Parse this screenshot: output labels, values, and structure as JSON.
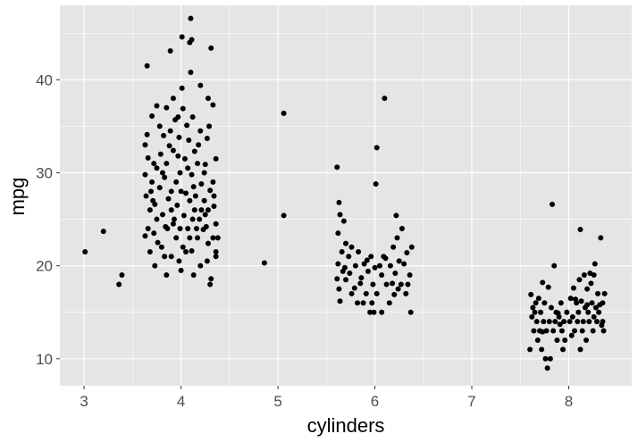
{
  "chart_data": {
    "type": "scatter",
    "title": "",
    "xlabel": "cylinders",
    "ylabel": "mpg",
    "xlim": [
      2.75,
      8.65
    ],
    "ylim": [
      7.1,
      48.0
    ],
    "xticks": [
      3,
      4,
      5,
      6,
      7,
      8
    ],
    "yticks": [
      10,
      20,
      30,
      40
    ],
    "x_tick_labels": [
      "3",
      "4",
      "5",
      "6",
      "7",
      "8"
    ],
    "y_tick_labels": [
      "10",
      "20",
      "30",
      "40"
    ],
    "grid": true,
    "legend": "none",
    "colors": {
      "panel": "#e5e5e5",
      "grid": "#ffffff",
      "point": "#000000",
      "tick_text": "#4d4d4d"
    },
    "jitter_width": 0.4,
    "series": [
      {
        "values": [
          {
            "x": 3.01,
            "y": 21.5
          },
          {
            "x": 3.2,
            "y": 23.7
          },
          {
            "x": 3.36,
            "y": 18.0
          },
          {
            "x": 3.39,
            "y": 19.0
          },
          {
            "x": 4.86,
            "y": 20.3
          },
          {
            "x": 5.06,
            "y": 36.4
          },
          {
            "x": 5.06,
            "y": 25.4
          },
          {
            "x": 4.1,
            "y": 46.6
          },
          {
            "x": 4.01,
            "y": 44.6
          },
          {
            "x": 4.11,
            "y": 44.3
          },
          {
            "x": 4.09,
            "y": 44.0
          },
          {
            "x": 3.89,
            "y": 43.1
          },
          {
            "x": 4.31,
            "y": 43.4
          },
          {
            "x": 3.65,
            "y": 41.5
          },
          {
            "x": 4.1,
            "y": 40.8
          },
          {
            "x": 4.01,
            "y": 39.1
          },
          {
            "x": 3.92,
            "y": 38.0
          },
          {
            "x": 4.2,
            "y": 39.4
          },
          {
            "x": 4.28,
            "y": 38.0
          },
          {
            "x": 3.75,
            "y": 37.2
          },
          {
            "x": 3.85,
            "y": 37.0
          },
          {
            "x": 3.7,
            "y": 36.1
          },
          {
            "x": 3.97,
            "y": 36.0
          },
          {
            "x": 4.12,
            "y": 36.0
          },
          {
            "x": 4.33,
            "y": 37.3
          },
          {
            "x": 3.78,
            "y": 35.0
          },
          {
            "x": 4.06,
            "y": 35.1
          },
          {
            "x": 4.2,
            "y": 34.5
          },
          {
            "x": 3.65,
            "y": 34.1
          },
          {
            "x": 3.82,
            "y": 34.0
          },
          {
            "x": 3.98,
            "y": 33.8
          },
          {
            "x": 4.08,
            "y": 33.5
          },
          {
            "x": 3.63,
            "y": 33.0
          },
          {
            "x": 3.88,
            "y": 32.9
          },
          {
            "x": 4.27,
            "y": 33.7
          },
          {
            "x": 3.92,
            "y": 32.4
          },
          {
            "x": 4.14,
            "y": 32.3
          },
          {
            "x": 3.66,
            "y": 31.6
          },
          {
            "x": 4.04,
            "y": 31.5
          },
          {
            "x": 3.72,
            "y": 31.0
          },
          {
            "x": 3.85,
            "y": 31.0
          },
          {
            "x": 4.17,
            "y": 31.0
          },
          {
            "x": 4.36,
            "y": 31.5
          },
          {
            "x": 3.75,
            "y": 30.5
          },
          {
            "x": 3.99,
            "y": 30.0
          },
          {
            "x": 4.25,
            "y": 30.9
          },
          {
            "x": 3.63,
            "y": 29.8
          },
          {
            "x": 3.83,
            "y": 29.5
          },
          {
            "x": 4.11,
            "y": 29.8
          },
          {
            "x": 4.33,
            "y": 29.0
          },
          {
            "x": 3.7,
            "y": 29.0
          },
          {
            "x": 3.95,
            "y": 29.0
          },
          {
            "x": 4.21,
            "y": 28.8
          },
          {
            "x": 3.78,
            "y": 28.4
          },
          {
            "x": 3.9,
            "y": 28.0
          },
          {
            "x": 4.0,
            "y": 28.0
          },
          {
            "x": 4.3,
            "y": 28.1
          },
          {
            "x": 3.64,
            "y": 27.5
          },
          {
            "x": 3.87,
            "y": 27.2
          },
          {
            "x": 4.09,
            "y": 27.0
          },
          {
            "x": 4.24,
            "y": 27.0
          },
          {
            "x": 3.73,
            "y": 26.6
          },
          {
            "x": 3.96,
            "y": 26.5
          },
          {
            "x": 4.14,
            "y": 26.0
          },
          {
            "x": 4.21,
            "y": 26.0
          },
          {
            "x": 4.28,
            "y": 26.0
          },
          {
            "x": 4.34,
            "y": 26.4
          },
          {
            "x": 3.68,
            "y": 26.0
          },
          {
            "x": 3.81,
            "y": 25.5
          },
          {
            "x": 4.03,
            "y": 25.4
          },
          {
            "x": 4.12,
            "y": 25.0
          },
          {
            "x": 4.19,
            "y": 25.0
          },
          {
            "x": 3.75,
            "y": 25.0
          },
          {
            "x": 3.92,
            "y": 24.5
          },
          {
            "x": 4.26,
            "y": 24.2
          },
          {
            "x": 4.36,
            "y": 24.5
          },
          {
            "x": 3.66,
            "y": 24.0
          },
          {
            "x": 3.86,
            "y": 24.0
          },
          {
            "x": 3.99,
            "y": 24.0
          },
          {
            "x": 4.07,
            "y": 24.0
          },
          {
            "x": 4.23,
            "y": 23.9
          },
          {
            "x": 3.72,
            "y": 23.5
          },
          {
            "x": 3.95,
            "y": 23.0
          },
          {
            "x": 4.17,
            "y": 23.0
          },
          {
            "x": 4.33,
            "y": 23.0
          },
          {
            "x": 4.38,
            "y": 23.0
          },
          {
            "x": 3.63,
            "y": 23.2
          },
          {
            "x": 3.8,
            "y": 22.0
          },
          {
            "x": 4.02,
            "y": 22.0
          },
          {
            "x": 4.28,
            "y": 22.4
          },
          {
            "x": 3.68,
            "y": 21.5
          },
          {
            "x": 3.9,
            "y": 21.0
          },
          {
            "x": 4.11,
            "y": 21.6
          },
          {
            "x": 4.36,
            "y": 21.5
          },
          {
            "x": 4.36,
            "y": 21.0
          },
          {
            "x": 3.98,
            "y": 20.5
          },
          {
            "x": 4.2,
            "y": 20.0
          },
          {
            "x": 3.73,
            "y": 20.0
          },
          {
            "x": 3.85,
            "y": 19.0
          },
          {
            "x": 4.13,
            "y": 19.0
          },
          {
            "x": 4.31,
            "y": 18.6
          },
          {
            "x": 4.3,
            "y": 18.0
          },
          {
            "x": 4.05,
            "y": 27.8
          },
          {
            "x": 3.94,
            "y": 35.7
          },
          {
            "x": 4.18,
            "y": 33.0
          },
          {
            "x": 3.79,
            "y": 32.0
          },
          {
            "x": 4.07,
            "y": 30.5
          },
          {
            "x": 3.69,
            "y": 28.0
          },
          {
            "x": 4.15,
            "y": 27.5
          },
          {
            "x": 3.9,
            "y": 26.0
          },
          {
            "x": 4.25,
            "y": 25.5
          },
          {
            "x": 3.84,
            "y": 24.2
          },
          {
            "x": 4.16,
            "y": 24.0
          },
          {
            "x": 3.76,
            "y": 22.5
          },
          {
            "x": 4.05,
            "y": 21.5
          },
          {
            "x": 4.24,
            "y": 30.0
          },
          {
            "x": 3.97,
            "y": 31.8
          },
          {
            "x": 3.89,
            "y": 34.5
          },
          {
            "x": 4.02,
            "y": 36.9
          },
          {
            "x": 4.29,
            "y": 35.0
          },
          {
            "x": 3.81,
            "y": 30.0
          },
          {
            "x": 4.13,
            "y": 28.5
          },
          {
            "x": 3.71,
            "y": 27.0
          },
          {
            "x": 4.34,
            "y": 27.5
          },
          {
            "x": 3.93,
            "y": 25.0
          },
          {
            "x": 4.09,
            "y": 23.0
          },
          {
            "x": 3.83,
            "y": 21.0
          },
          {
            "x": 4.27,
            "y": 20.5
          },
          {
            "x": 4.0,
            "y": 19.5
          },
          {
            "x": 6.1,
            "y": 38.0
          },
          {
            "x": 6.02,
            "y": 32.7
          },
          {
            "x": 5.61,
            "y": 30.6
          },
          {
            "x": 6.01,
            "y": 28.8
          },
          {
            "x": 5.63,
            "y": 26.8
          },
          {
            "x": 5.64,
            "y": 25.5
          },
          {
            "x": 6.22,
            "y": 25.4
          },
          {
            "x": 5.68,
            "y": 24.8
          },
          {
            "x": 6.28,
            "y": 24.0
          },
          {
            "x": 5.62,
            "y": 23.5
          },
          {
            "x": 6.23,
            "y": 23.0
          },
          {
            "x": 5.7,
            "y": 22.4
          },
          {
            "x": 5.76,
            "y": 22.0
          },
          {
            "x": 6.19,
            "y": 22.0
          },
          {
            "x": 6.38,
            "y": 22.0
          },
          {
            "x": 5.66,
            "y": 21.5
          },
          {
            "x": 5.83,
            "y": 21.5
          },
          {
            "x": 6.33,
            "y": 21.4
          },
          {
            "x": 5.73,
            "y": 21.0
          },
          {
            "x": 5.96,
            "y": 21.0
          },
          {
            "x": 6.11,
            "y": 20.8
          },
          {
            "x": 6.25,
            "y": 20.5
          },
          {
            "x": 5.62,
            "y": 20.2
          },
          {
            "x": 5.8,
            "y": 20.0
          },
          {
            "x": 5.89,
            "y": 20.2
          },
          {
            "x": 6.05,
            "y": 20.0
          },
          {
            "x": 6.16,
            "y": 20.0
          },
          {
            "x": 6.3,
            "y": 20.2
          },
          {
            "x": 5.67,
            "y": 19.4
          },
          {
            "x": 5.74,
            "y": 19.2
          },
          {
            "x": 5.93,
            "y": 19.4
          },
          {
            "x": 6.07,
            "y": 19.0
          },
          {
            "x": 6.21,
            "y": 19.2
          },
          {
            "x": 6.36,
            "y": 19.0
          },
          {
            "x": 5.61,
            "y": 18.6
          },
          {
            "x": 5.7,
            "y": 18.5
          },
          {
            "x": 5.85,
            "y": 18.1
          },
          {
            "x": 5.98,
            "y": 18.0
          },
          {
            "x": 6.12,
            "y": 18.0
          },
          {
            "x": 6.18,
            "y": 18.1
          },
          {
            "x": 6.27,
            "y": 18.0
          },
          {
            "x": 6.34,
            "y": 18.0
          },
          {
            "x": 5.63,
            "y": 17.5
          },
          {
            "x": 5.79,
            "y": 17.6
          },
          {
            "x": 5.91,
            "y": 17.0
          },
          {
            "x": 6.02,
            "y": 17.0
          },
          {
            "x": 6.32,
            "y": 17.0
          },
          {
            "x": 5.64,
            "y": 16.2
          },
          {
            "x": 5.82,
            "y": 16.0
          },
          {
            "x": 5.88,
            "y": 16.0
          },
          {
            "x": 5.97,
            "y": 16.0
          },
          {
            "x": 6.15,
            "y": 16.0
          },
          {
            "x": 5.95,
            "y": 15.0
          },
          {
            "x": 5.99,
            "y": 15.0
          },
          {
            "x": 6.07,
            "y": 15.0
          },
          {
            "x": 6.37,
            "y": 15.0
          },
          {
            "x": 5.69,
            "y": 19.8
          },
          {
            "x": 5.86,
            "y": 18.7
          },
          {
            "x": 6.09,
            "y": 21.0
          },
          {
            "x": 6.24,
            "y": 17.5
          },
          {
            "x": 5.76,
            "y": 17.0
          },
          {
            "x": 6.0,
            "y": 19.8
          },
          {
            "x": 6.2,
            "y": 16.9
          },
          {
            "x": 5.92,
            "y": 20.6
          },
          {
            "x": 7.83,
            "y": 26.6
          },
          {
            "x": 8.12,
            "y": 23.9
          },
          {
            "x": 8.33,
            "y": 23.0
          },
          {
            "x": 8.27,
            "y": 20.2
          },
          {
            "x": 7.85,
            "y": 20.0
          },
          {
            "x": 8.22,
            "y": 19.2
          },
          {
            "x": 8.16,
            "y": 19.0
          },
          {
            "x": 8.26,
            "y": 19.0
          },
          {
            "x": 7.73,
            "y": 18.2
          },
          {
            "x": 8.11,
            "y": 18.5
          },
          {
            "x": 8.23,
            "y": 18.1
          },
          {
            "x": 7.79,
            "y": 17.7
          },
          {
            "x": 8.05,
            "y": 17.6
          },
          {
            "x": 8.19,
            "y": 17.5
          },
          {
            "x": 8.3,
            "y": 17.0
          },
          {
            "x": 8.37,
            "y": 17.0
          },
          {
            "x": 7.61,
            "y": 16.9
          },
          {
            "x": 7.69,
            "y": 16.5
          },
          {
            "x": 8.02,
            "y": 16.5
          },
          {
            "x": 8.13,
            "y": 16.2
          },
          {
            "x": 7.66,
            "y": 16.0
          },
          {
            "x": 7.75,
            "y": 16.0
          },
          {
            "x": 7.92,
            "y": 16.0
          },
          {
            "x": 8.08,
            "y": 16.0
          },
          {
            "x": 8.24,
            "y": 16.0
          },
          {
            "x": 8.35,
            "y": 16.0
          },
          {
            "x": 7.63,
            "y": 15.5
          },
          {
            "x": 7.82,
            "y": 15.5
          },
          {
            "x": 8.17,
            "y": 15.5
          },
          {
            "x": 8.28,
            "y": 15.5
          },
          {
            "x": 7.65,
            "y": 15.0
          },
          {
            "x": 7.71,
            "y": 15.0
          },
          {
            "x": 7.87,
            "y": 15.0
          },
          {
            "x": 7.98,
            "y": 15.0
          },
          {
            "x": 8.1,
            "y": 15.0
          },
          {
            "x": 8.2,
            "y": 15.0
          },
          {
            "x": 8.31,
            "y": 15.0
          },
          {
            "x": 7.62,
            "y": 14.5
          },
          {
            "x": 7.9,
            "y": 14.5
          },
          {
            "x": 8.04,
            "y": 14.5
          },
          {
            "x": 8.26,
            "y": 14.5
          },
          {
            "x": 7.67,
            "y": 14.0
          },
          {
            "x": 7.74,
            "y": 14.0
          },
          {
            "x": 7.8,
            "y": 14.0
          },
          {
            "x": 7.86,
            "y": 14.0
          },
          {
            "x": 7.95,
            "y": 14.0
          },
          {
            "x": 8.01,
            "y": 14.0
          },
          {
            "x": 8.09,
            "y": 14.0
          },
          {
            "x": 8.15,
            "y": 14.0
          },
          {
            "x": 8.21,
            "y": 14.0
          },
          {
            "x": 8.29,
            "y": 14.0
          },
          {
            "x": 8.35,
            "y": 14.0
          },
          {
            "x": 7.64,
            "y": 13.0
          },
          {
            "x": 7.7,
            "y": 13.0
          },
          {
            "x": 7.77,
            "y": 13.0
          },
          {
            "x": 7.84,
            "y": 13.0
          },
          {
            "x": 7.93,
            "y": 13.0
          },
          {
            "x": 8.06,
            "y": 13.0
          },
          {
            "x": 8.14,
            "y": 13.0
          },
          {
            "x": 8.25,
            "y": 13.0
          },
          {
            "x": 8.36,
            "y": 13.0
          },
          {
            "x": 7.68,
            "y": 12.0
          },
          {
            "x": 7.88,
            "y": 12.0
          },
          {
            "x": 7.96,
            "y": 12.0
          },
          {
            "x": 8.18,
            "y": 12.0
          },
          {
            "x": 7.72,
            "y": 11.0
          },
          {
            "x": 7.94,
            "y": 11.0
          },
          {
            "x": 8.12,
            "y": 11.0
          },
          {
            "x": 7.6,
            "y": 11.0
          },
          {
            "x": 7.76,
            "y": 10.0
          },
          {
            "x": 7.81,
            "y": 10.0
          },
          {
            "x": 7.78,
            "y": 9.0
          },
          {
            "x": 8.07,
            "y": 16.4
          },
          {
            "x": 8.32,
            "y": 15.8
          },
          {
            "x": 7.91,
            "y": 13.7
          },
          {
            "x": 8.03,
            "y": 12.5
          },
          {
            "x": 8.34,
            "y": 13.6
          },
          {
            "x": 7.89,
            "y": 14.9
          },
          {
            "x": 8.19,
            "y": 15.8
          },
          {
            "x": 7.73,
            "y": 12.9
          }
        ]
      }
    ]
  }
}
